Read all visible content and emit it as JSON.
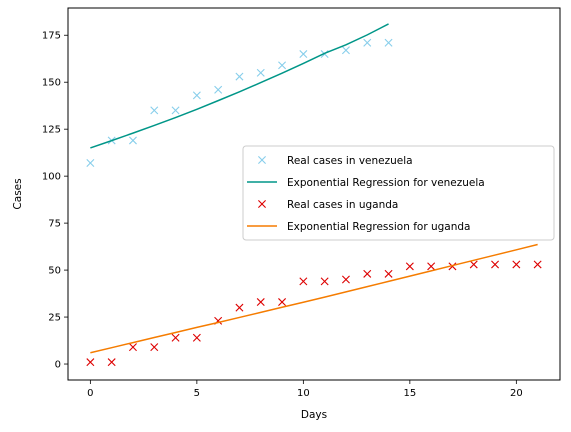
{
  "chart_data": {
    "type": "line",
    "title": "",
    "xlabel": "Days",
    "ylabel": "Cases",
    "xlim": [
      -1.05,
      22.05
    ],
    "ylim": [
      -8.5,
      189.5
    ],
    "xticks": [
      0,
      5,
      10,
      15,
      20
    ],
    "yticks": [
      0,
      25,
      50,
      75,
      100,
      125,
      150,
      175
    ],
    "grid": false,
    "legend_position": "center-right",
    "series": [
      {
        "name": "Real cases in venezuela",
        "kind": "scatter",
        "marker": "x",
        "color": "#87ceeb",
        "x": [
          0,
          1,
          2,
          3,
          4,
          5,
          6,
          7,
          8,
          9,
          10,
          11,
          12,
          13,
          14
        ],
        "y": [
          107,
          119,
          119,
          135,
          135,
          143,
          146,
          153,
          155,
          159,
          165,
          165,
          167,
          171,
          171
        ]
      },
      {
        "name": "Exponential Regression for venezuela",
        "kind": "line",
        "color": "#009688",
        "x": [
          0,
          1,
          2,
          3,
          4,
          5,
          6,
          7,
          8,
          9,
          10,
          11,
          12,
          13,
          14
        ],
        "y": [
          115.0,
          118.9,
          122.9,
          127.0,
          131.2,
          135.6,
          140.2,
          144.9,
          149.8,
          154.8,
          160.0,
          165.4,
          169.9,
          175.2,
          181.0
        ]
      },
      {
        "name": "Real cases in uganda",
        "kind": "scatter",
        "marker": "x",
        "color": "#dd0000",
        "x": [
          0,
          1,
          2,
          3,
          4,
          5,
          6,
          7,
          8,
          9,
          10,
          11,
          12,
          13,
          14,
          15,
          16,
          17,
          18,
          19,
          20,
          21
        ],
        "y": [
          1,
          1,
          9,
          9,
          14,
          14,
          23,
          30,
          33,
          33,
          44,
          44,
          45,
          48,
          48,
          52,
          52,
          52,
          53,
          53,
          53,
          53
        ]
      },
      {
        "name": "Exponential Regression for uganda",
        "kind": "line",
        "color": "#f57c00",
        "x": [
          0,
          1,
          2,
          3,
          4,
          5,
          6,
          7,
          8,
          9,
          10,
          11,
          12,
          13,
          14,
          15,
          16,
          17,
          18,
          19,
          20,
          21
        ],
        "y": [
          6.0,
          8.7,
          11.4,
          14.1,
          16.8,
          19.5,
          22.1,
          24.8,
          27.5,
          30.2,
          32.9,
          35.6,
          38.4,
          41.2,
          44.0,
          46.8,
          49.6,
          52.4,
          55.2,
          58.0,
          60.8,
          63.6
        ]
      }
    ]
  }
}
